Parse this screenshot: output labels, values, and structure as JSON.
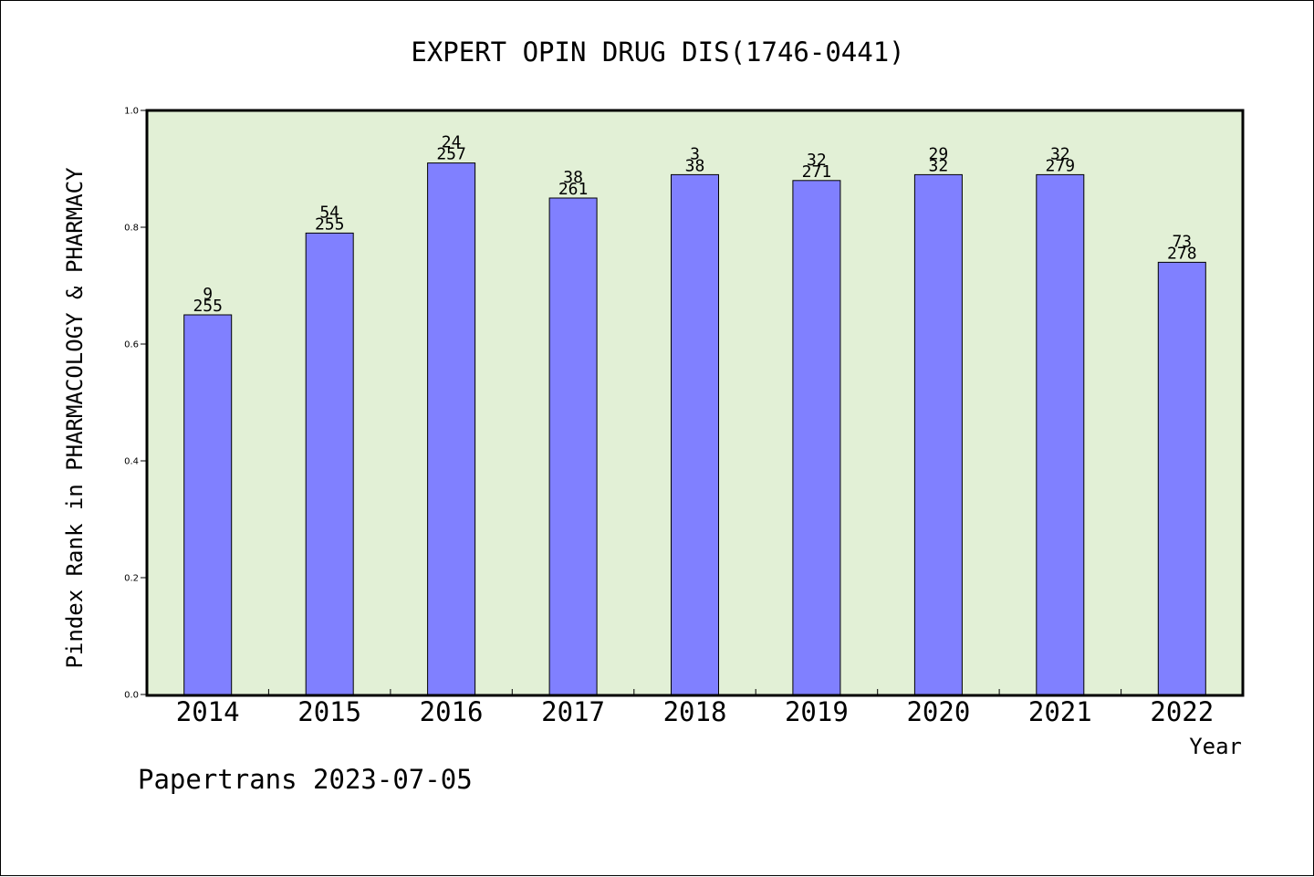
{
  "chart_data": {
    "type": "bar",
    "title": "EXPERT OPIN DRUG DIS(1746-0441)",
    "xlabel": "Year",
    "ylabel": "Pindex Rank in PHARMACOLOGY & PHARMACY",
    "ylim": [
      0,
      1.0
    ],
    "yticks": [
      "0.0",
      "0.2",
      "0.4",
      "0.6",
      "0.8",
      "1.0"
    ],
    "categories": [
      "2014",
      "2015",
      "2016",
      "2017",
      "2018",
      "2019",
      "2020",
      "2021",
      "2022"
    ],
    "values": [
      0.65,
      0.79,
      0.91,
      0.85,
      0.89,
      0.88,
      0.89,
      0.89,
      0.74
    ],
    "labels_top": [
      "9",
      "54",
      "24",
      "38",
      "3",
      "32",
      "29",
      "32",
      "73"
    ],
    "labels_bottom": [
      "255",
      "255",
      "257",
      "261",
      "38",
      "271",
      "32",
      "279",
      "278"
    ],
    "grid": false,
    "colors": {
      "bar_fill": "#8080ff",
      "plot_background": "#e2f0d6",
      "axis": "#000000"
    }
  },
  "footer": "Papertrans 2023-07-05"
}
